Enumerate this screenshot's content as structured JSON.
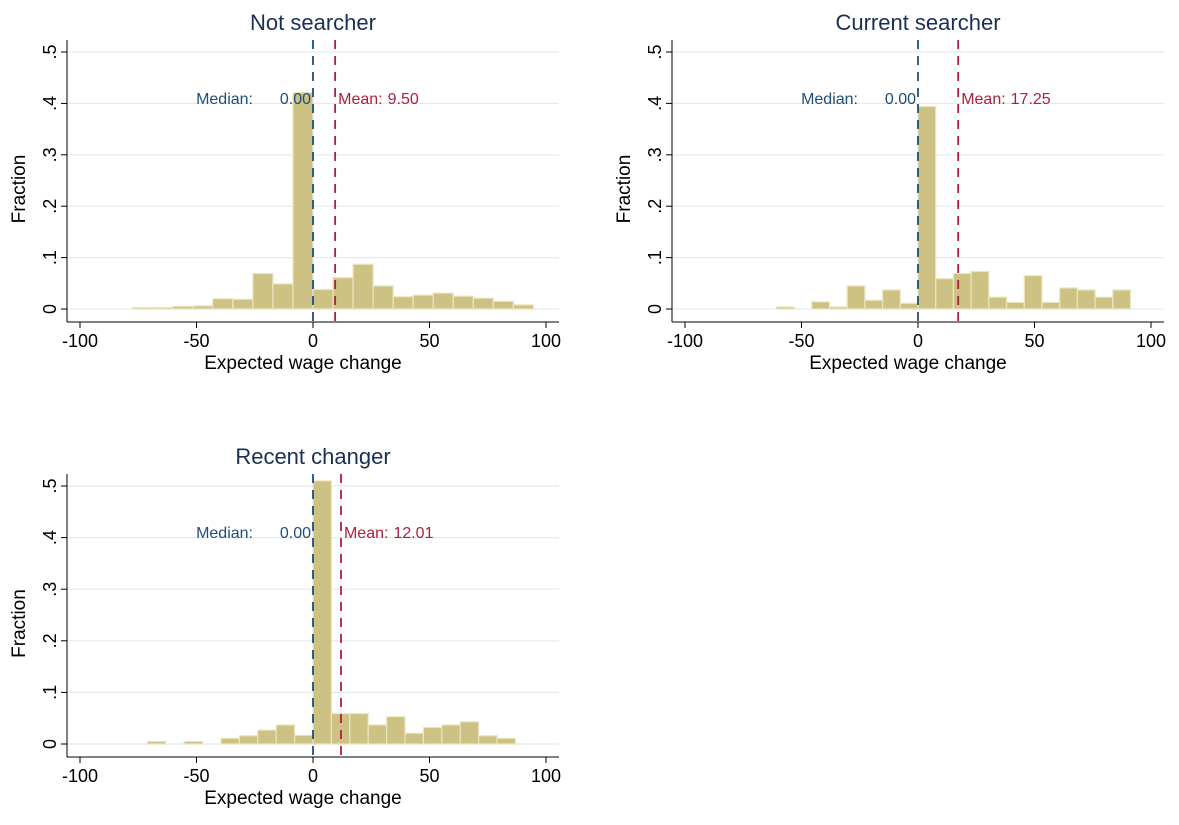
{
  "figure": {
    "colors": {
      "bar_fill": "#CDC283",
      "bar_edge": "#ECE6C0",
      "grid": "#E2EAEF",
      "title": "#1A2F55",
      "median": "#1F4E79",
      "mean": "#B01E3C",
      "axis": "#000000"
    }
  },
  "chart_data": [
    {
      "type": "bar",
      "title": "Not searcher",
      "xlabel": "Expected wage change",
      "ylabel": "Fraction",
      "xlim": [
        -100,
        100
      ],
      "ylim": [
        0,
        0.5
      ],
      "xticks": [
        -100,
        -50,
        0,
        50,
        100
      ],
      "xtick_labels": [
        "-100",
        "-50",
        "0",
        "50",
        "100"
      ],
      "yticks": [
        0,
        0.1,
        0.2,
        0.3,
        0.4,
        0.5
      ],
      "ytick_labels": [
        "0",
        ".1",
        ".2",
        ".3",
        ".4",
        ".5"
      ],
      "grid": true,
      "bin_width": 8.6,
      "bins_left": [
        -77.4,
        -68.8,
        -60.2,
        -51.6,
        -43.0,
        -34.4,
        -25.8,
        -17.2,
        -8.6,
        0.0,
        8.6,
        17.2,
        25.8,
        34.4,
        43.0,
        51.6,
        60.2,
        68.8,
        77.4,
        86.0,
        94.6
      ],
      "values": [
        0.003,
        0.003,
        0.005,
        0.006,
        0.02,
        0.019,
        0.069,
        0.049,
        0.421,
        0.038,
        0.061,
        0.087,
        0.045,
        0.024,
        0.027,
        0.031,
        0.025,
        0.021,
        0.015,
        0.008,
        0.0
      ],
      "median": {
        "value": 0.0,
        "label": "Median:",
        "value_text": "0.00"
      },
      "mean": {
        "value": 9.5,
        "label": "Mean:",
        "value_text": "9.50"
      }
    },
    {
      "type": "bar",
      "title": "Current searcher",
      "xlabel": "Expected wage change",
      "ylabel": "Fraction",
      "xlim": [
        -100,
        100
      ],
      "ylim": [
        0,
        0.5
      ],
      "xticks": [
        -100,
        -50,
        0,
        50,
        100
      ],
      "xtick_labels": [
        "-100",
        "-50",
        "0",
        "50",
        "100"
      ],
      "yticks": [
        0,
        0.1,
        0.2,
        0.3,
        0.4,
        0.5
      ],
      "ytick_labels": [
        "0",
        ".1",
        ".2",
        ".3",
        ".4",
        ".5"
      ],
      "grid": true,
      "bin_width": 7.6,
      "bins_left": [
        -60.8,
        -53.2,
        -45.6,
        -38.0,
        -30.4,
        -22.8,
        -15.2,
        -7.6,
        0.0,
        7.6,
        15.2,
        22.8,
        30.4,
        38.0,
        45.6,
        53.2,
        60.8,
        68.4,
        76.0,
        83.6
      ],
      "values": [
        0.004,
        0.0,
        0.014,
        0.004,
        0.045,
        0.017,
        0.037,
        0.011,
        0.394,
        0.059,
        0.069,
        0.073,
        0.023,
        0.013,
        0.065,
        0.013,
        0.041,
        0.037,
        0.023,
        0.037
      ],
      "median": {
        "value": 0.0,
        "label": "Median:",
        "value_text": "0.00"
      },
      "mean": {
        "value": 17.25,
        "label": "Mean:",
        "value_text": "17.25"
      }
    },
    {
      "type": "bar",
      "title": "Recent changer",
      "xlabel": "Expected wage change",
      "ylabel": "Fraction",
      "xlim": [
        -100,
        100
      ],
      "ylim": [
        0,
        0.5
      ],
      "xticks": [
        -100,
        -50,
        0,
        50,
        100
      ],
      "xtick_labels": [
        "-100",
        "-50",
        "0",
        "50",
        "100"
      ],
      "yticks": [
        0,
        0.1,
        0.2,
        0.3,
        0.4,
        0.5
      ],
      "ytick_labels": [
        "0",
        ".1",
        ".2",
        ".3",
        ".4",
        ".5"
      ],
      "grid": true,
      "bin_width": 7.9,
      "bins_left": [
        -71.1,
        -63.2,
        -55.3,
        -47.4,
        -39.5,
        -31.6,
        -23.7,
        -15.8,
        -7.9,
        0.0,
        7.9,
        15.8,
        23.7,
        31.6,
        39.5,
        47.4,
        55.3,
        63.2,
        71.1,
        79.0
      ],
      "values": [
        0.005,
        0.0,
        0.005,
        0.0,
        0.011,
        0.016,
        0.027,
        0.037,
        0.017,
        0.51,
        0.059,
        0.059,
        0.037,
        0.053,
        0.021,
        0.032,
        0.037,
        0.043,
        0.016,
        0.011
      ],
      "median": {
        "value": 0.0,
        "label": "Median:",
        "value_text": "0.00"
      },
      "mean": {
        "value": 12.01,
        "label": "Mean:",
        "value_text": "12.01"
      }
    }
  ]
}
